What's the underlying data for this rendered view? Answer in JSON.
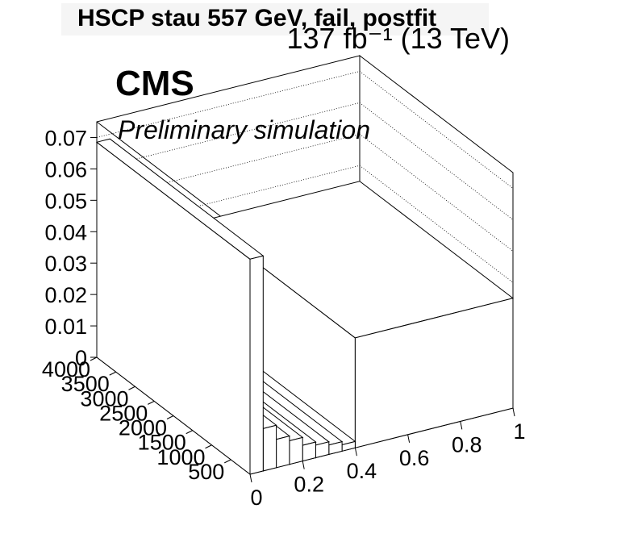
{
  "chart_data": {
    "type": "lego3d",
    "title": "HSCP stau 557 GeV, fail, postfit",
    "lumi_label": "137 fb⁻¹ (13 TeV)",
    "cms_label": "CMS",
    "sub_label": "Preliminary simulation",
    "z_ticks": [
      "0",
      "0.01",
      "0.02",
      "0.03",
      "0.04",
      "0.05",
      "0.06",
      "0.07"
    ],
    "x_ticks": [
      "0",
      "0.2",
      "0.4",
      "0.6",
      "0.8",
      "1"
    ],
    "y_ticks": [
      "500",
      "1000",
      "1500",
      "2000",
      "2500",
      "3000",
      "3500",
      "4000"
    ],
    "xlim": [
      0,
      1
    ],
    "ylim": [
      0,
      4000
    ],
    "zlim": [
      0,
      0.075
    ],
    "bins": [
      {
        "x0": 0.0,
        "x1": 0.05,
        "value": 0.0685
      },
      {
        "x0": 0.05,
        "x1": 0.1,
        "value": 0.0135
      },
      {
        "x0": 0.1,
        "x1": 0.15,
        "value": 0.009
      },
      {
        "x0": 0.15,
        "x1": 0.2,
        "value": 0.0075
      },
      {
        "x0": 0.2,
        "x1": 0.25,
        "value": 0.005
      },
      {
        "x0": 0.25,
        "x1": 0.3,
        "value": 0.004
      },
      {
        "x0": 0.3,
        "x1": 0.35,
        "value": 0.003
      },
      {
        "x0": 0.35,
        "x1": 0.4,
        "value": 0.002
      },
      {
        "x0": 0.4,
        "x1": 1.0,
        "value": 0.035
      }
    ]
  }
}
